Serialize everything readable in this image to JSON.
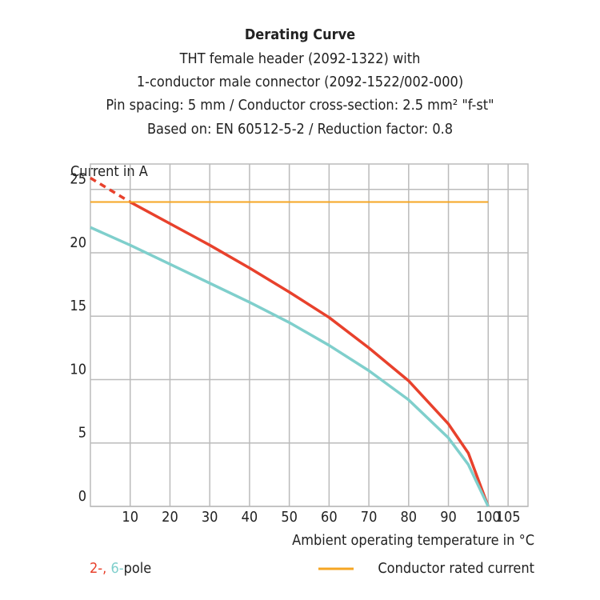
{
  "chart_data": {
    "type": "line",
    "title": "Derating Curve",
    "subtitle": [
      "THT female header (2092-1322) with",
      "1-conductor male connector (2092-1522/002-000)",
      "Pin spacing: 5 mm / Conductor cross-section: 2.5 mm² \"f-st\"",
      "Based on: EN 60512-5-2 / Reduction factor: 0.8"
    ],
    "y_label": "Current in A",
    "x_label": "Ambient operating temperature in °C",
    "xlim": [
      0,
      110
    ],
    "ylim": [
      0,
      27
    ],
    "xticks": [
      10,
      20,
      30,
      40,
      50,
      60,
      70,
      80,
      90,
      100,
      105
    ],
    "yticks": [
      0,
      5,
      10,
      15,
      20,
      25
    ],
    "grid": true,
    "legend_label": [
      {
        "text": "2-",
        "color": "#e8412c"
      },
      {
        "text": ", ",
        "color": "#e8412c"
      },
      {
        "text": "6-",
        "color": "#7fcfcc"
      },
      {
        "text": "pole",
        "color": "#222222"
      }
    ],
    "series": [
      {
        "color": "#e8412c",
        "style": "dashed",
        "x": [
          0,
          10
        ],
        "values": [
          25.9,
          24
        ]
      },
      {
        "color": "#e8412c",
        "style": "solid",
        "x": [
          10,
          20,
          30,
          40,
          50,
          60,
          70,
          80,
          90,
          95,
          100
        ],
        "values": [
          24,
          22.3,
          20.6,
          18.8,
          16.9,
          14.9,
          12.5,
          9.9,
          6.5,
          4.2,
          0
        ]
      },
      {
        "color": "#7fcfcc",
        "style": "solid",
        "x": [
          0,
          10,
          20,
          30,
          40,
          50,
          60,
          70,
          80,
          90,
          95,
          100
        ],
        "values": [
          22,
          20.6,
          19.1,
          17.6,
          16.1,
          14.5,
          12.7,
          10.7,
          8.4,
          5.4,
          3.3,
          0
        ]
      },
      {
        "name": "Conductor rated current",
        "color": "#f5a623",
        "style": "thin",
        "x": [
          0,
          100
        ],
        "values": [
          24,
          24
        ]
      }
    ]
  }
}
